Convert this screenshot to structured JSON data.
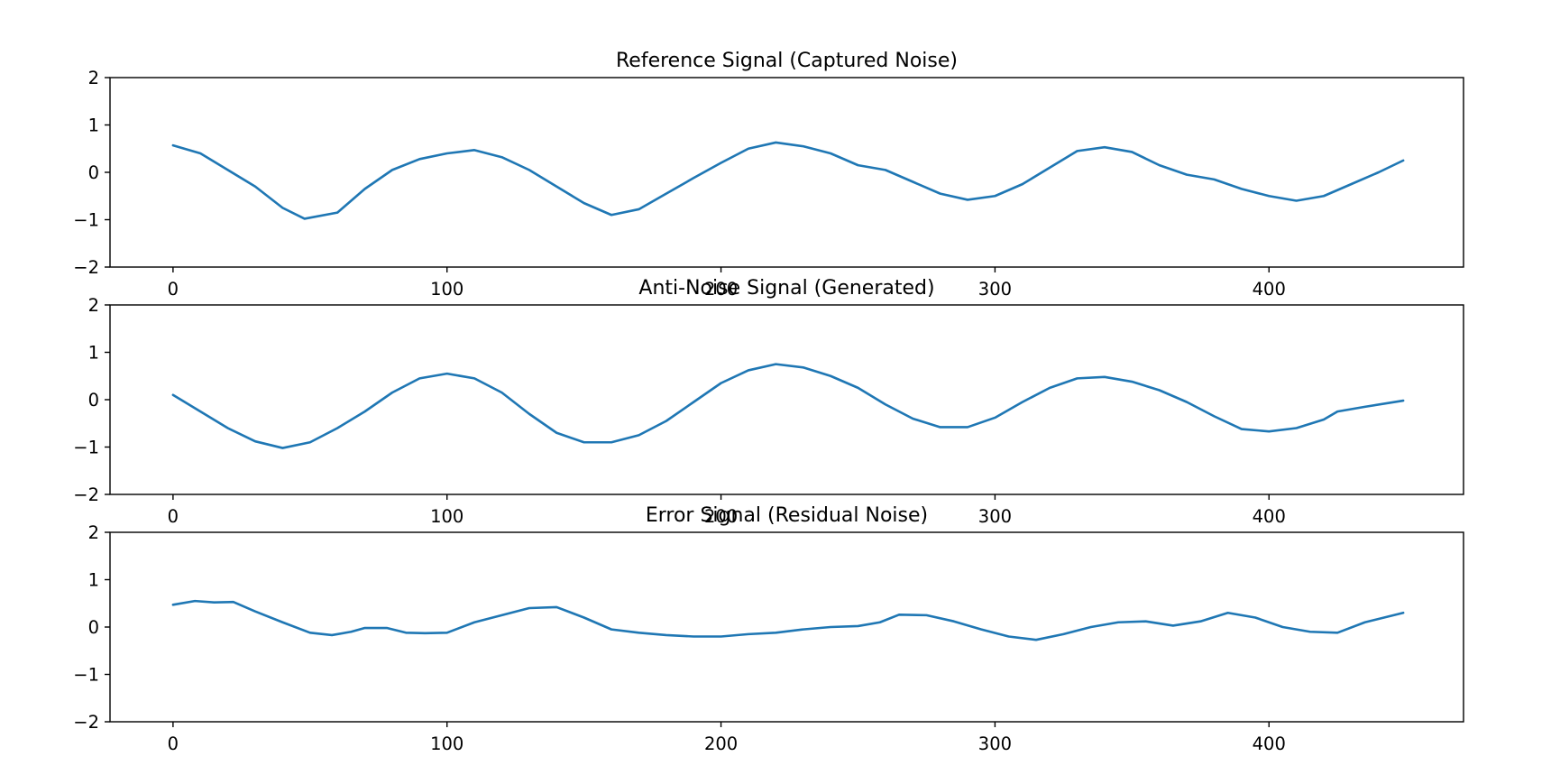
{
  "chart_data": [
    {
      "type": "line",
      "title": "Reference Signal (Captured Noise)",
      "xlabel": "",
      "ylabel": "",
      "xlim": [
        -23,
        471
      ],
      "ylim": [
        -2,
        2
      ],
      "xticks": [
        "0",
        "100",
        "200",
        "300",
        "400"
      ],
      "yticks": [
        "−2",
        "−1",
        "0",
        "1",
        "2"
      ],
      "grid": false,
      "series": [
        {
          "color": "#1f77b4",
          "x": [
            0,
            10,
            20,
            30,
            40,
            48,
            60,
            70,
            80,
            90,
            100,
            110,
            120,
            130,
            140,
            150,
            160,
            170,
            180,
            190,
            200,
            210,
            220,
            230,
            240,
            250,
            260,
            270,
            280,
            290,
            300,
            310,
            320,
            330,
            340,
            350,
            360,
            370,
            380,
            390,
            400,
            410,
            420,
            430,
            440,
            449
          ],
          "y": [
            0.57,
            0.4,
            0.05,
            -0.3,
            -0.75,
            -0.98,
            -0.85,
            -0.35,
            0.05,
            0.28,
            0.4,
            0.47,
            0.32,
            0.05,
            -0.3,
            -0.65,
            -0.9,
            -0.78,
            -0.45,
            -0.12,
            0.2,
            0.5,
            0.63,
            0.55,
            0.4,
            0.15,
            0.05,
            -0.2,
            -0.45,
            -0.58,
            -0.5,
            -0.25,
            0.1,
            0.45,
            0.53,
            0.43,
            0.15,
            -0.05,
            -0.15,
            -0.35,
            -0.5,
            -0.6,
            -0.5,
            -0.25,
            0.0,
            0.25
          ]
        }
      ]
    },
    {
      "type": "line",
      "title": "Anti-Noise Signal (Generated)",
      "xlabel": "",
      "ylabel": "",
      "xlim": [
        -23,
        471
      ],
      "ylim": [
        -2,
        2
      ],
      "xticks": [
        "0",
        "100",
        "200",
        "300",
        "400"
      ],
      "yticks": [
        "−2",
        "−1",
        "0",
        "1",
        "2"
      ],
      "grid": false,
      "series": [
        {
          "color": "#1f77b4",
          "x": [
            0,
            10,
            20,
            30,
            40,
            50,
            60,
            70,
            80,
            90,
            100,
            110,
            120,
            130,
            140,
            150,
            160,
            170,
            180,
            190,
            200,
            210,
            220,
            230,
            240,
            250,
            260,
            270,
            280,
            290,
            300,
            310,
            320,
            330,
            340,
            350,
            360,
            370,
            380,
            390,
            400,
            410,
            420,
            425,
            435,
            449
          ],
          "y": [
            0.1,
            -0.25,
            -0.6,
            -0.88,
            -1.02,
            -0.9,
            -0.6,
            -0.25,
            0.15,
            0.45,
            0.55,
            0.45,
            0.15,
            -0.3,
            -0.7,
            -0.9,
            -0.9,
            -0.75,
            -0.45,
            -0.05,
            0.35,
            0.62,
            0.75,
            0.68,
            0.5,
            0.25,
            -0.1,
            -0.4,
            -0.58,
            -0.58,
            -0.38,
            -0.05,
            0.25,
            0.45,
            0.48,
            0.38,
            0.2,
            -0.05,
            -0.35,
            -0.62,
            -0.67,
            -0.6,
            -0.42,
            -0.25,
            -0.15,
            -0.02
          ]
        }
      ]
    },
    {
      "type": "line",
      "title": "Error Signal (Residual Noise)",
      "xlabel": "",
      "ylabel": "",
      "xlim": [
        -23,
        471
      ],
      "ylim": [
        -2,
        2
      ],
      "xticks": [
        "0",
        "100",
        "200",
        "300",
        "400"
      ],
      "yticks": [
        "−2",
        "−1",
        "0",
        "1",
        "2"
      ],
      "grid": false,
      "series": [
        {
          "color": "#1f77b4",
          "x": [
            0,
            8,
            15,
            22,
            30,
            40,
            50,
            58,
            65,
            70,
            78,
            85,
            92,
            100,
            110,
            120,
            130,
            140,
            150,
            160,
            170,
            180,
            190,
            200,
            210,
            220,
            230,
            240,
            250,
            258,
            265,
            275,
            285,
            295,
            305,
            315,
            325,
            335,
            345,
            355,
            365,
            375,
            385,
            395,
            405,
            415,
            425,
            435,
            449
          ],
          "y": [
            0.47,
            0.55,
            0.52,
            0.53,
            0.33,
            0.1,
            -0.12,
            -0.17,
            -0.1,
            -0.02,
            -0.02,
            -0.12,
            -0.13,
            -0.12,
            0.1,
            0.25,
            0.4,
            0.42,
            0.2,
            -0.05,
            -0.12,
            -0.17,
            -0.2,
            -0.2,
            -0.15,
            -0.12,
            -0.05,
            0.0,
            0.02,
            0.1,
            0.26,
            0.25,
            0.12,
            -0.05,
            -0.2,
            -0.27,
            -0.15,
            0.0,
            0.1,
            0.12,
            0.03,
            0.12,
            0.3,
            0.2,
            0.0,
            -0.1,
            -0.12,
            0.1,
            0.3
          ]
        }
      ]
    }
  ]
}
